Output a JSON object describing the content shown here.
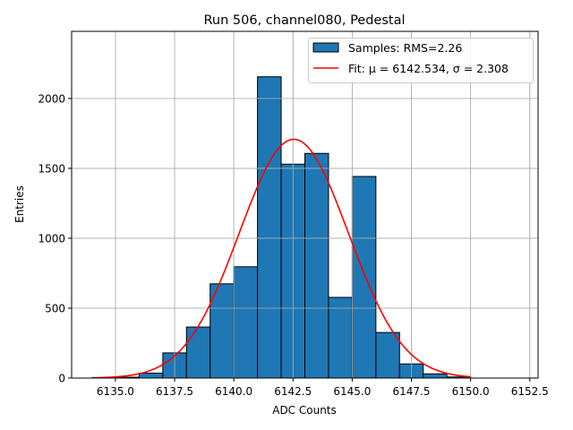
{
  "chart_data": {
    "type": "bar",
    "title": "Run 506, channel080, Pedestal",
    "xlabel": "ADC Counts",
    "ylabel": "Entries",
    "xlim": [
      6133.15,
      6152.85
    ],
    "ylim": [
      0,
      2480
    ],
    "grid": true,
    "legend_placement": "top-right",
    "xticks": [
      6135.0,
      6137.5,
      6140.0,
      6142.5,
      6145.0,
      6147.5,
      6150.0,
      6152.5
    ],
    "xtick_labels": [
      "6135.0",
      "6137.5",
      "6140.0",
      "6142.5",
      "6145.0",
      "6147.5",
      "6150.0",
      "6152.5"
    ],
    "yticks": [
      0,
      500,
      1000,
      1500,
      2000
    ],
    "ytick_labels": [
      "0",
      "500",
      "1000",
      "1500",
      "2000"
    ],
    "histogram": {
      "name": "Samples: RMS=2.26",
      "color": "#1f77b4",
      "bin_edges": [
        6134,
        6135,
        6136,
        6137,
        6138,
        6139,
        6140,
        6141,
        6142,
        6143,
        6144,
        6145,
        6146,
        6147,
        6148,
        6149,
        6150
      ],
      "values": [
        1,
        6,
        35,
        180,
        365,
        674,
        796,
        2155,
        1530,
        1607,
        577,
        1442,
        326,
        101,
        30,
        8
      ]
    },
    "fit": {
      "name": "Fit: μ = 6142.534, σ = 2.308",
      "color": "#ff0000",
      "mu": 6142.534,
      "sigma": 2.308,
      "amplitude": 1708,
      "x_range": [
        6134,
        6150
      ]
    },
    "legend": {
      "hist_label": "Samples: RMS=2.26",
      "fit_label": "Fit: μ = 6142.534, σ = 2.308"
    }
  }
}
